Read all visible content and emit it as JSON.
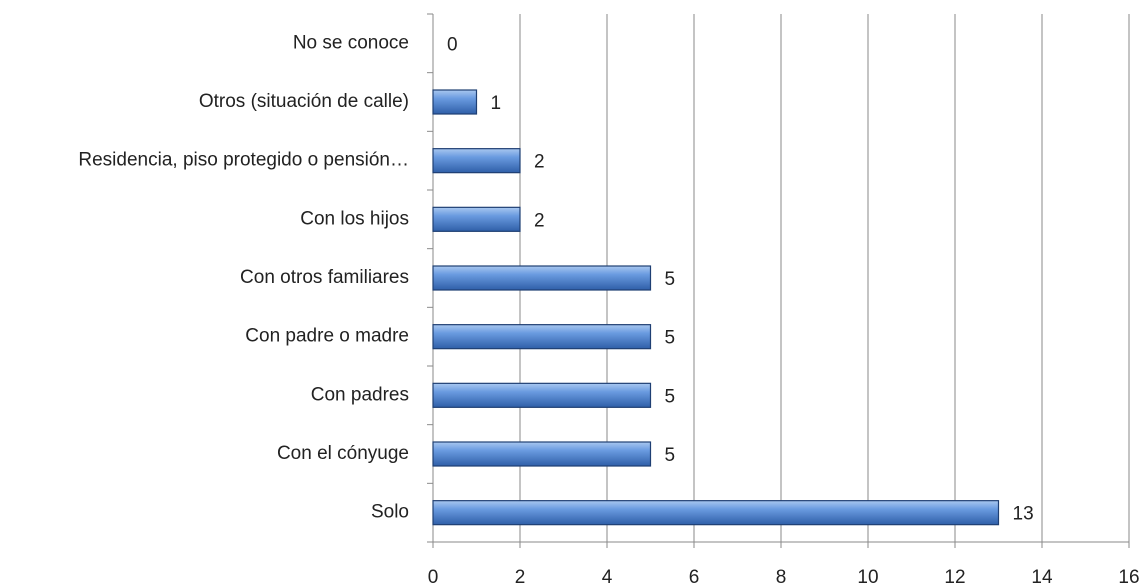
{
  "chart_data": {
    "type": "bar",
    "orientation": "horizontal",
    "categories": [
      "No se conoce",
      "Otros (situación de calle)",
      "Residencia, piso protegido o pensión…",
      "Con los hijos",
      "Con otros familiares",
      "Con padre o madre",
      "Con padres",
      "Con el cónyuge",
      "Solo"
    ],
    "values": [
      0,
      1,
      2,
      2,
      5,
      5,
      5,
      5,
      13
    ],
    "color": "#4a7fc4",
    "xlim": [
      0,
      16
    ],
    "xticks": [
      0,
      2,
      4,
      6,
      8,
      10,
      12,
      14,
      16
    ],
    "grid": true
  }
}
